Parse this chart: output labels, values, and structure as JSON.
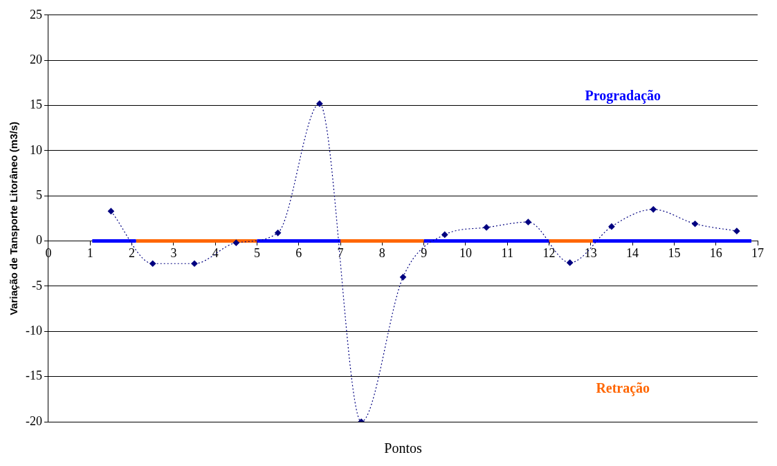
{
  "chart_data": {
    "type": "line",
    "xlabel": "Pontos",
    "ylabel": "Variação de Tansporte Litorâneo (m3/s)",
    "xlim": [
      0,
      17
    ],
    "xticks": [
      0,
      1,
      2,
      3,
      4,
      5,
      6,
      7,
      8,
      9,
      10,
      11,
      12,
      13,
      14,
      15,
      16,
      17
    ],
    "ylim": [
      -20,
      25
    ],
    "yticks": [
      -20,
      -15,
      -10,
      -5,
      0,
      5,
      10,
      15,
      20,
      25
    ],
    "grid": "y",
    "legend": false,
    "series": [
      {
        "color": "#000080",
        "marker": "diamond",
        "line_style": "dotted",
        "x": [
          1.5,
          2.5,
          3.5,
          4.5,
          5.5,
          6.5,
          7.5,
          8.5,
          9.5,
          10.5,
          11.5,
          12.5,
          13.5,
          14.5,
          15.5,
          16.5
        ],
        "values": [
          3.3,
          -2.5,
          -2.5,
          -0.2,
          0.9,
          15.2,
          -20,
          -4,
          0.7,
          1.5,
          2.1,
          -2.4,
          1.6,
          3.5,
          1.9,
          1.1
        ]
      },
      {
        "color": "#0000ff",
        "marker": "none",
        "line_style": "solid",
        "x": [
          1.05,
          2.1,
          3,
          5,
          7,
          8,
          9,
          12,
          12.5,
          13.05,
          16.85
        ],
        "values": [
          0,
          0,
          null,
          0,
          0,
          null,
          0,
          0,
          null,
          0,
          0
        ]
      },
      {
        "color": "#ff6600",
        "marker": "none",
        "line_style": "solid",
        "x": [
          2.1,
          5,
          6,
          7,
          9,
          10,
          12,
          13.05
        ],
        "values": [
          0,
          0,
          null,
          0,
          0,
          null,
          0,
          0
        ]
      }
    ],
    "annotations": [
      "Progradação",
      "Retração"
    ]
  }
}
